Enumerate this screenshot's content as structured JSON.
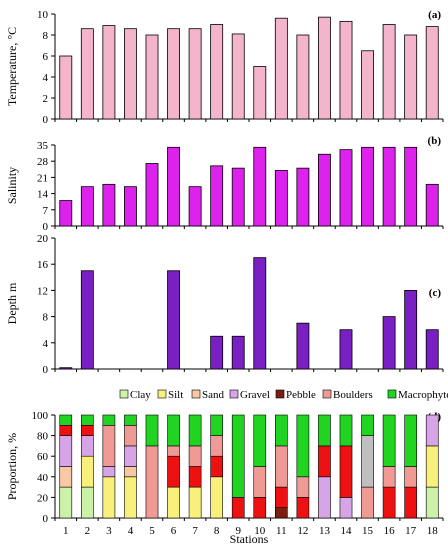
{
  "chart_data": [
    {
      "type": "bar",
      "panel_label": "(a)",
      "ylabel": "Temperature, °C",
      "ylim": [
        0,
        10
      ],
      "yticks": [
        0,
        2,
        4,
        6,
        8,
        10
      ],
      "grid": false,
      "color": "#f4b5cc",
      "categories": [
        "1",
        "2",
        "3",
        "4",
        "5",
        "6",
        "7",
        "8",
        "9",
        "10",
        "11",
        "12",
        "13",
        "14",
        "15",
        "16",
        "17",
        "18"
      ],
      "values": [
        6.0,
        8.6,
        8.9,
        8.6,
        8.0,
        8.6,
        8.6,
        9.0,
        8.1,
        5.0,
        9.6,
        8.0,
        9.7,
        9.3,
        6.5,
        9.0,
        8.0,
        8.8
      ]
    },
    {
      "type": "bar",
      "panel_label": "(b)",
      "ylabel": "Salinity",
      "ylim": [
        0,
        35
      ],
      "yticks": [
        0,
        7,
        14,
        21,
        28,
        35
      ],
      "grid": false,
      "color": "#dd22ee",
      "categories": [
        "1",
        "2",
        "3",
        "4",
        "5",
        "6",
        "7",
        "8",
        "9",
        "10",
        "11",
        "12",
        "13",
        "14",
        "15",
        "16",
        "17",
        "18"
      ],
      "values": [
        11,
        17,
        18,
        17,
        27,
        34,
        17,
        26,
        25,
        34,
        24,
        25,
        31,
        33,
        34,
        34,
        34,
        18
      ]
    },
    {
      "type": "bar",
      "panel_label": "(c)",
      "ylabel": "Depth m",
      "ylim": [
        0,
        20
      ],
      "yticks": [
        0,
        4,
        8,
        12,
        16,
        20
      ],
      "grid": false,
      "color": "#7a1fc4",
      "categories": [
        "1",
        "2",
        "3",
        "4",
        "5",
        "6",
        "7",
        "8",
        "9",
        "10",
        "11",
        "12",
        "13",
        "14",
        "15",
        "16",
        "17",
        "18"
      ],
      "values": [
        0.2,
        15,
        0,
        0,
        0,
        15,
        0,
        5,
        5,
        17,
        0,
        7,
        0,
        6,
        0,
        8,
        12,
        6
      ]
    },
    {
      "type": "bar",
      "stacked": true,
      "panel_label": "(d)",
      "ylabel": "Proportion, %",
      "xlabel": "Stations",
      "ylim": [
        0,
        100
      ],
      "yticks": [
        0,
        20,
        40,
        60,
        80,
        100
      ],
      "grid": false,
      "legend_position": "top",
      "categories": [
        "1",
        "2",
        "3",
        "4",
        "5",
        "6",
        "7",
        "8",
        "9",
        "10",
        "11",
        "12",
        "13",
        "14",
        "15",
        "16",
        "17",
        "18"
      ],
      "series": [
        {
          "name": "Clay",
          "color": "#ccf2a8",
          "values": [
            30,
            30,
            0,
            0,
            0,
            0,
            0,
            0,
            0,
            0,
            0,
            0,
            0,
            0,
            0,
            0,
            0,
            30
          ]
        },
        {
          "name": "Silt",
          "color": "#f8f07a",
          "values": [
            0,
            30,
            40,
            40,
            0,
            30,
            30,
            40,
            0,
            0,
            0,
            0,
            0,
            0,
            0,
            0,
            0,
            40
          ]
        },
        {
          "name": "Sand",
          "color": "#f8c8a4",
          "values": [
            20,
            0,
            0,
            10,
            0,
            0,
            0,
            0,
            0,
            0,
            0,
            0,
            0,
            0,
            0,
            0,
            0,
            0
          ]
        },
        {
          "name": "Gravel",
          "color": "#d8a4e8",
          "values": [
            30,
            20,
            10,
            20,
            0,
            0,
            0,
            0,
            0,
            0,
            0,
            0,
            40,
            20,
            0,
            0,
            0,
            30
          ]
        },
        {
          "name": "Pebble",
          "color": "#7a2010",
          "values": [
            0,
            0,
            0,
            0,
            0,
            0,
            0,
            0,
            0,
            0,
            10,
            0,
            0,
            0,
            0,
            0,
            0,
            0
          ]
        },
        {
          "name": "",
          "color": "#ee1111",
          "values": [
            10,
            10,
            0,
            0,
            0,
            30,
            20,
            20,
            20,
            20,
            20,
            20,
            30,
            50,
            0,
            30,
            30,
            0
          ]
        },
        {
          "name": "Boulders",
          "color": "#f09a96",
          "values": [
            0,
            0,
            40,
            20,
            70,
            10,
            20,
            20,
            0,
            30,
            40,
            20,
            0,
            0,
            30,
            20,
            20,
            0
          ]
        },
        {
          "name": "",
          "color": "#bfbfbf",
          "values": [
            0,
            0,
            0,
            0,
            0,
            0,
            0,
            0,
            0,
            0,
            0,
            0,
            0,
            0,
            50,
            0,
            0,
            0
          ]
        },
        {
          "name": "Macrophytes",
          "color": "#22d422",
          "values": [
            10,
            10,
            10,
            10,
            30,
            30,
            30,
            20,
            80,
            50,
            30,
            60,
            30,
            30,
            20,
            50,
            50,
            0
          ]
        }
      ]
    }
  ]
}
